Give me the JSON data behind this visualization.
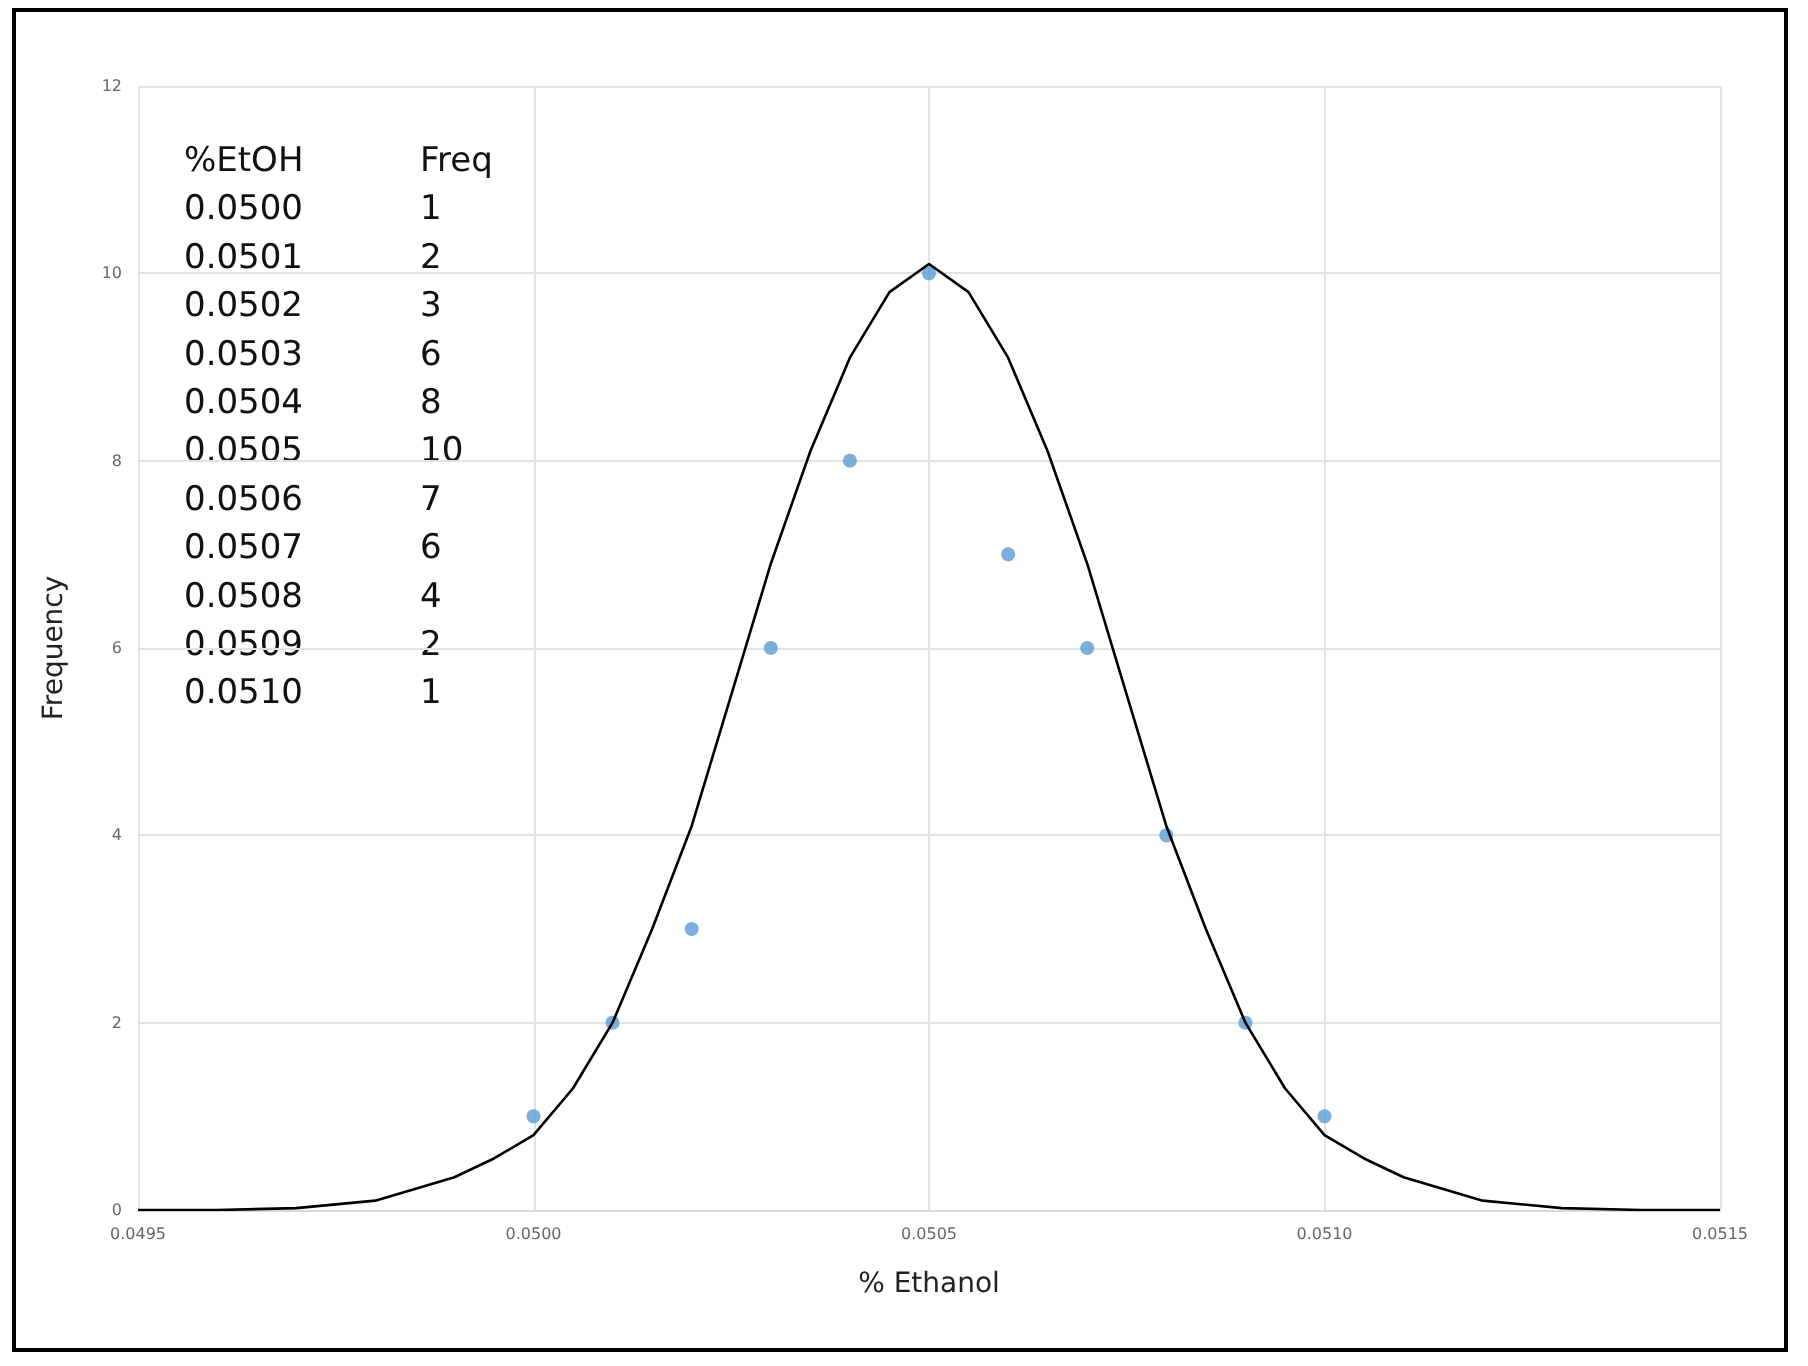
{
  "chart_data": {
    "type": "scatter",
    "xlabel": "% Ethanol",
    "ylabel": "Frequency",
    "annotations": [
      "%EtOH",
      "Freq",
      "0.0500",
      "1",
      "0.0501",
      "2",
      "0.0502",
      "3",
      "0.0503",
      "6",
      "0.0504",
      "8",
      "0.0505",
      "10",
      "0.0506",
      "7",
      "0.0507",
      "6",
      "0.0508",
      "4",
      "0.0509",
      "2",
      "0.0510",
      "1"
    ],
    "grid": true,
    "marker": "circle",
    "xlim": [
      0.0495,
      0.0515
    ],
    "xticks": [
      {
        "value": 0.0495,
        "label": "0.0495"
      },
      {
        "value": 0.05,
        "label": "0.0500"
      },
      {
        "value": 0.0505,
        "label": "0.0505"
      },
      {
        "value": 0.051,
        "label": "0.0510"
      },
      {
        "value": 0.0515,
        "label": "0.0515"
      }
    ],
    "ylim": [
      0,
      12
    ],
    "yticks": [
      0,
      2,
      4,
      6,
      8,
      10,
      12
    ],
    "series": [
      {
        "color": "#5b9bd5",
        "x": [
          0.05,
          0.0501,
          0.0502,
          0.0503,
          0.0504,
          0.0505,
          0.0506,
          0.0507,
          0.0508,
          0.0509,
          0.051
        ],
        "values": [
          1,
          2,
          3,
          6,
          8,
          10,
          7,
          6,
          4,
          2,
          1
        ]
      },
      {
        "type": "line",
        "color": "#000000",
        "marker": "none",
        "x": [
          0.0495,
          0.0496,
          0.0497,
          0.0498,
          0.0499,
          0.04995,
          0.05,
          0.05005,
          0.0501,
          0.05015,
          0.0502,
          0.05025,
          0.0503,
          0.05035,
          0.0504,
          0.05045,
          0.0505,
          0.05055,
          0.0506,
          0.05065,
          0.0507,
          0.05075,
          0.0508,
          0.05085,
          0.0509,
          0.05095,
          0.051,
          0.05105,
          0.0511,
          0.0512,
          0.0513,
          0.0514,
          0.0515
        ],
        "values": [
          0,
          0,
          0.02,
          0.1,
          0.35,
          0.55,
          0.8,
          1.3,
          2.0,
          3.0,
          4.1,
          5.5,
          6.9,
          8.1,
          9.1,
          9.8,
          10.1,
          9.8,
          9.1,
          8.1,
          6.9,
          5.5,
          4.1,
          3.0,
          2.0,
          1.3,
          0.8,
          0.55,
          0.35,
          0.1,
          0.02,
          0,
          0
        ]
      }
    ]
  }
}
